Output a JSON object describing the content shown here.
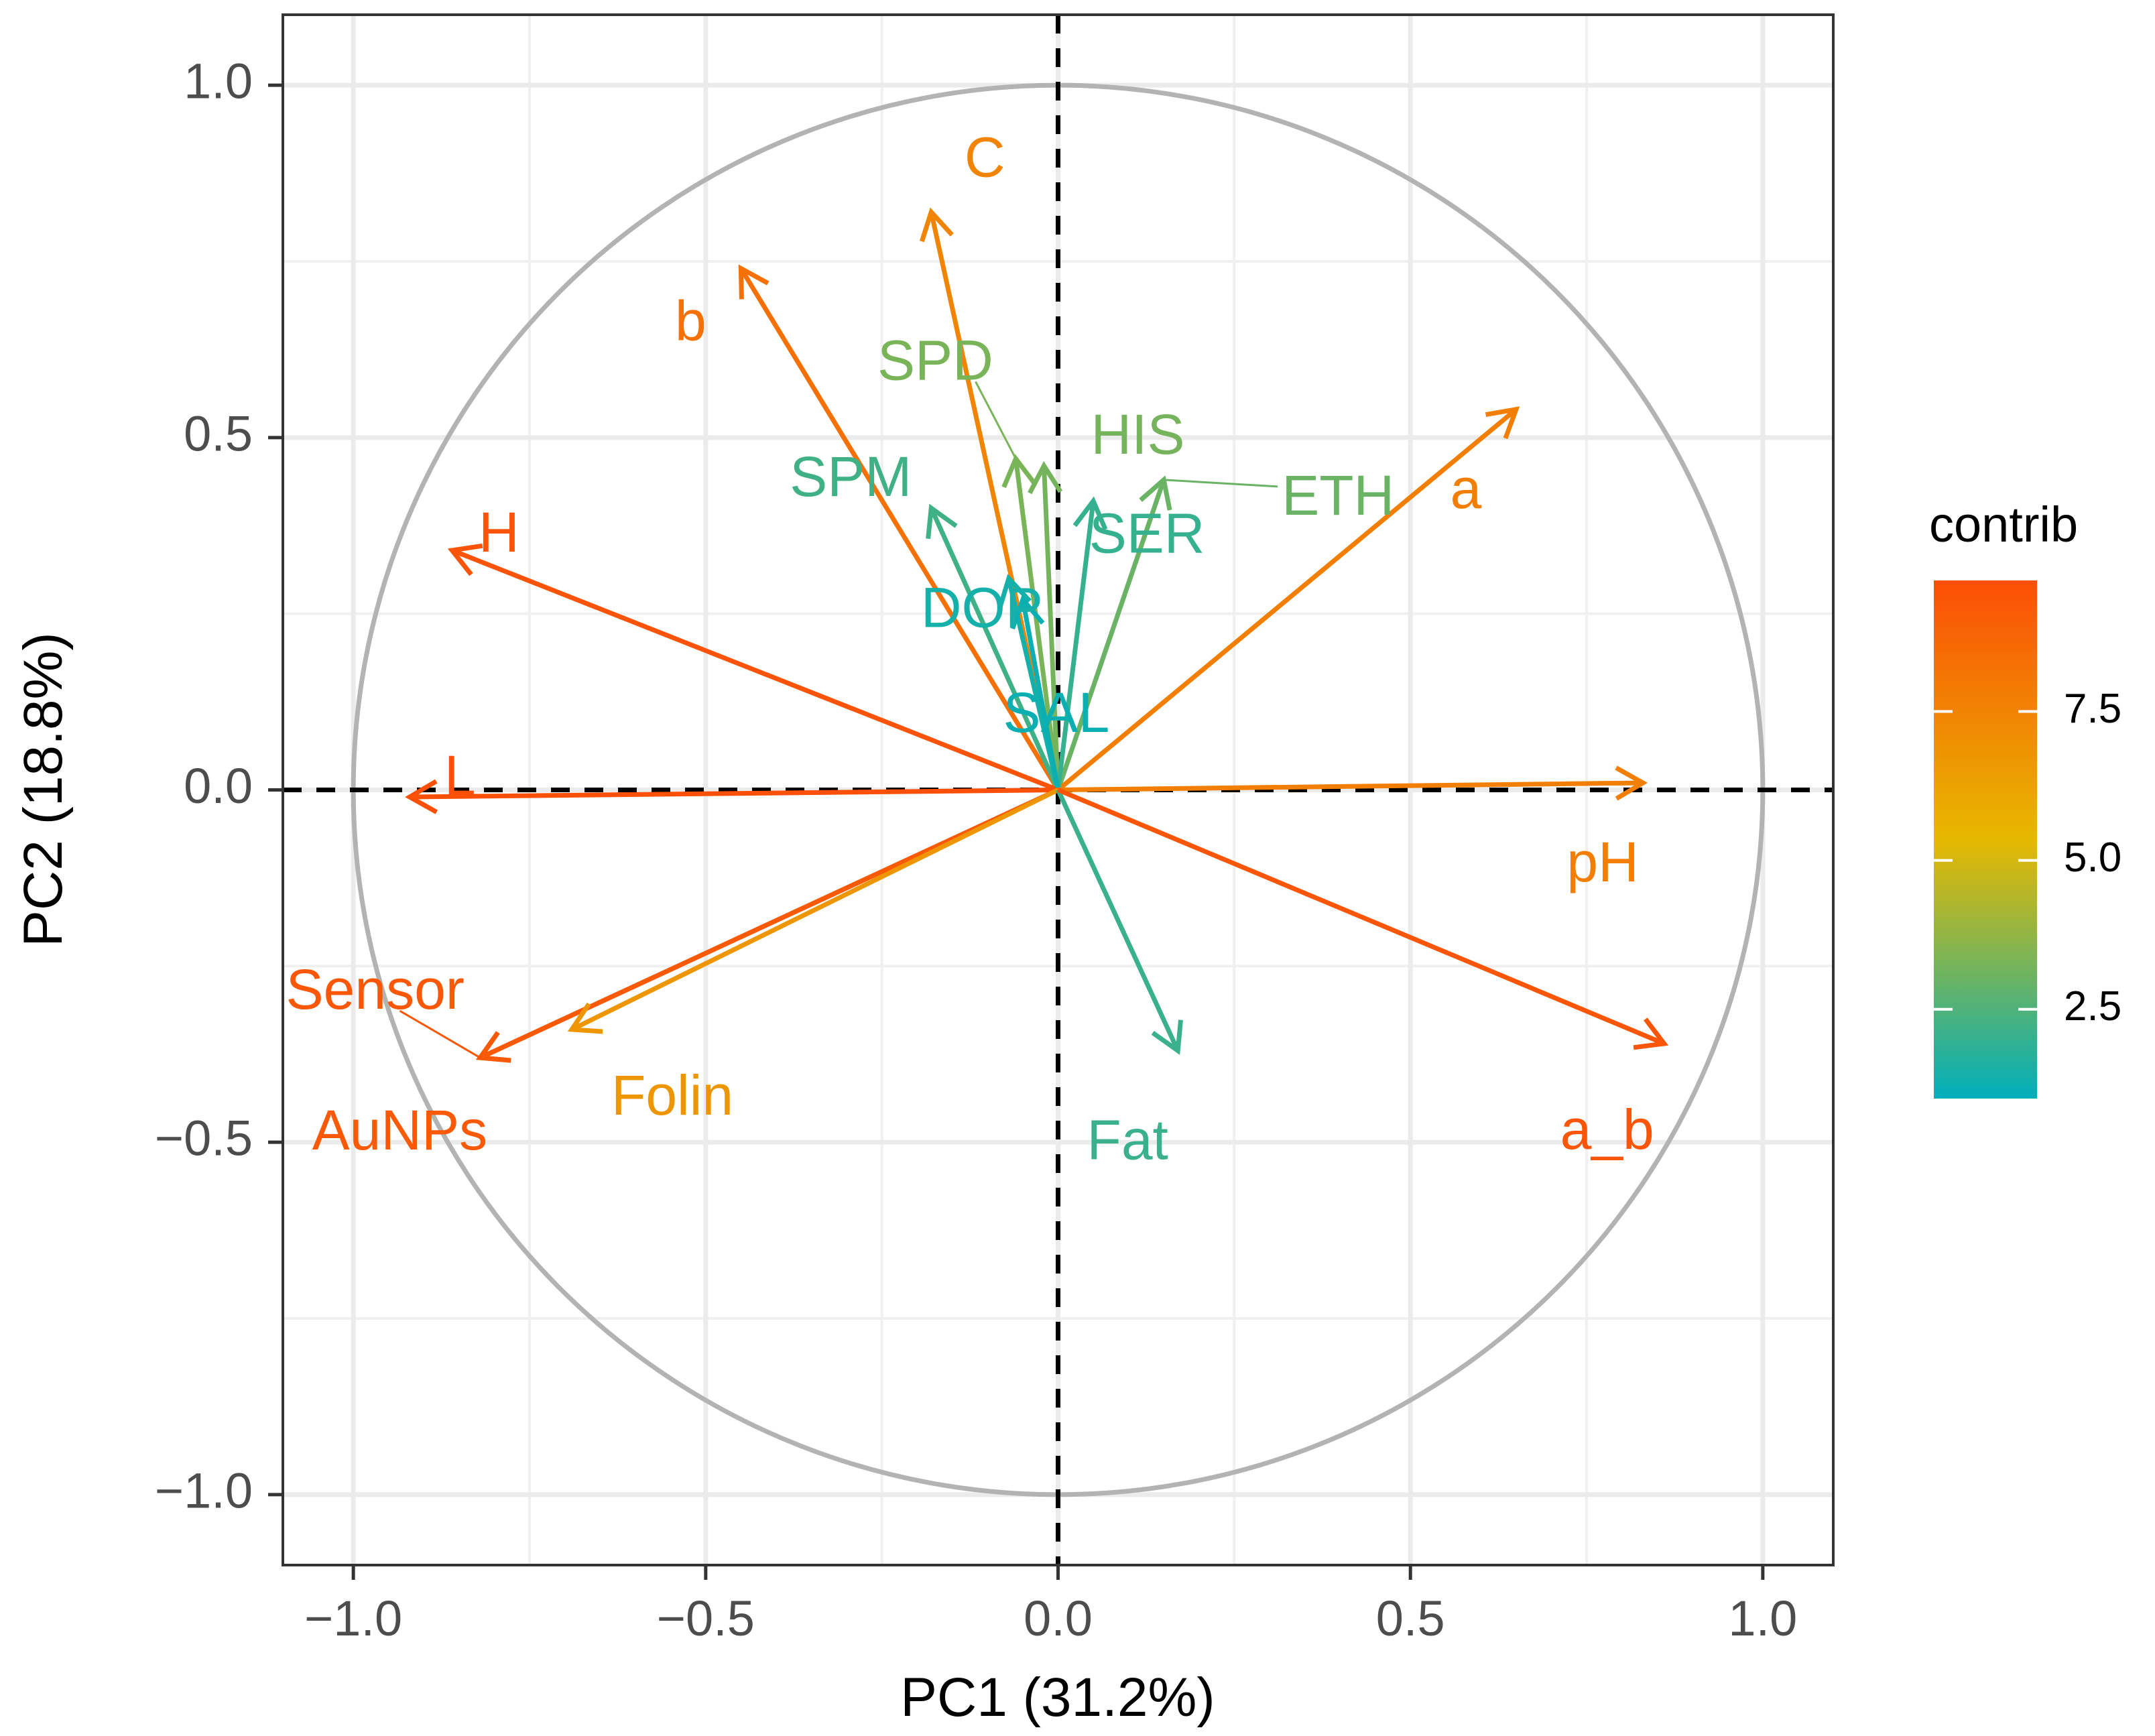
{
  "chart_data": {
    "type": "scatter",
    "subtype": "pca-variable-correlation-circle",
    "title": "",
    "xlabel": "PC1 (31.2%)",
    "ylabel": "PC2 (18.8%)",
    "xlim": [
      -1.1,
      1.1
    ],
    "ylim": [
      -1.1,
      1.1
    ],
    "x_ticks": [
      -1.0,
      -0.5,
      0.0,
      0.5,
      1.0
    ],
    "y_ticks": [
      -1.0,
      -0.5,
      0.0,
      0.5,
      1.0
    ],
    "x_tick_labels": [
      "−1.0",
      "−0.5",
      "0.0",
      "0.5",
      "1.0"
    ],
    "y_tick_labels": [
      "−1.0",
      "−0.5",
      "0.0",
      "0.5",
      "1.0"
    ],
    "grid": true,
    "unit_circle": true,
    "legend": {
      "title": "contrib",
      "position": "right",
      "min": 1.0,
      "max": 9.7,
      "ticks": [
        2.5,
        5.0,
        7.5
      ],
      "tick_labels": [
        "2.5",
        "5.0",
        "7.5"
      ],
      "gradient": [
        "#00AFBB",
        "#E7B800",
        "#FC4E07"
      ]
    },
    "variables": [
      {
        "name": "C",
        "x": -0.18,
        "y": 0.82,
        "contrib": 7.5
      },
      {
        "name": "b",
        "x": -0.45,
        "y": 0.74,
        "contrib": 8.3
      },
      {
        "name": "SPD",
        "x": -0.06,
        "y": 0.47,
        "contrib": 3.3
      },
      {
        "name": "HIS",
        "x": -0.02,
        "y": 0.46,
        "contrib": 3.2
      },
      {
        "name": "SPM",
        "x": -0.18,
        "y": 0.4,
        "contrib": 2.2
      },
      {
        "name": "ETH",
        "x": 0.15,
        "y": 0.44,
        "contrib": 3.0
      },
      {
        "name": "a",
        "x": 0.65,
        "y": 0.54,
        "contrib": 7.7
      },
      {
        "name": "H",
        "x": -0.86,
        "y": 0.34,
        "contrib": 9.5
      },
      {
        "name": "DOP",
        "x": -0.07,
        "y": 0.3,
        "contrib": 1.4
      },
      {
        "name": "SER",
        "x": 0.05,
        "y": 0.41,
        "contrib": 2.0
      },
      {
        "name": "SAL",
        "x": -0.05,
        "y": 0.27,
        "contrib": 1.2
      },
      {
        "name": "L",
        "x": -0.92,
        "y": -0.01,
        "contrib": 9.6
      },
      {
        "name": "pH",
        "x": 0.83,
        "y": 0.01,
        "contrib": 7.7
      },
      {
        "name": "nSensor",
        "x": -0.82,
        "y": -0.38,
        "contrib": 9.3
      },
      {
        "name": "AuNPs",
        "x": -0.82,
        "y": -0.38,
        "contrib": 9.2
      },
      {
        "name": "Folin",
        "x": -0.69,
        "y": -0.34,
        "contrib": 6.8
      },
      {
        "name": "Fat",
        "x": 0.17,
        "y": -0.37,
        "contrib": 2.1
      },
      {
        "name": "a_b",
        "x": 0.86,
        "y": -0.36,
        "contrib": 9.4
      }
    ]
  }
}
